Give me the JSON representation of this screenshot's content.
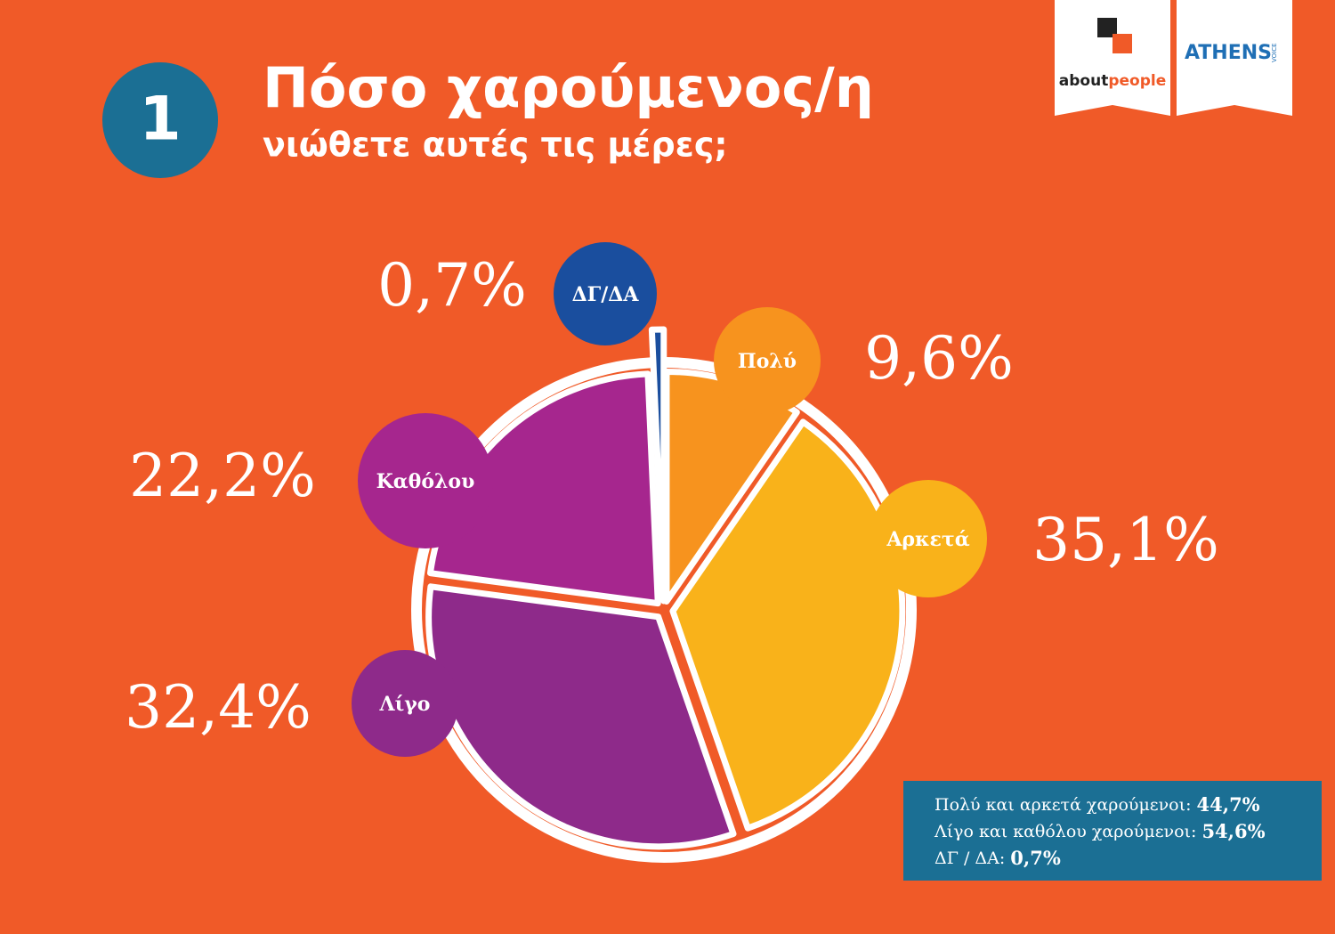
{
  "chart_data": {
    "type": "pie",
    "number": "1",
    "title": "Πόσο χαρούμενος/η",
    "subtitle": "νιώθετε αυτές τις μέρες;",
    "categories": [
      "Πολύ",
      "Αρκετά",
      "Λίγο",
      "Καθόλου",
      "ΔΓ/ΔΑ"
    ],
    "values": [
      9.6,
      35.1,
      32.4,
      22.2,
      0.7
    ],
    "value_labels": [
      "9,6%",
      "35,1%",
      "32,4%",
      "22,2%",
      "0,7%"
    ],
    "colors": [
      "#f7931e",
      "#f9b21a",
      "#8e2a8a",
      "#a6268e",
      "#1a4e9e"
    ],
    "summary": [
      {
        "text": "Πολύ και αρκετά χαρούμενοι:",
        "value": "44,7%"
      },
      {
        "text": "Λίγο και καθόλου χαρούμενοι:",
        "value": "54,6%"
      },
      {
        "text": "ΔΓ / ΔΑ:",
        "value": "0,7%"
      }
    ]
  },
  "logos": {
    "about": "about",
    "people": "people",
    "athens": "ATHENS",
    "voice": "VOICE"
  }
}
